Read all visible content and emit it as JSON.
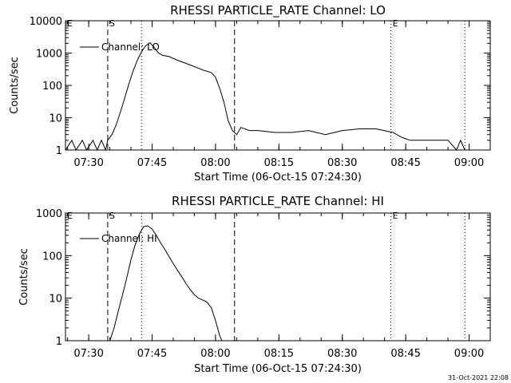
{
  "footer_date": "31-Oct-2021 22:08",
  "chart_data": [
    {
      "type": "line",
      "title": "RHESSI PARTICLE_RATE Channel: LO",
      "xlabel": "Start Time (06-Oct-15 07:24:30)",
      "ylabel": "Counts/sec",
      "y_scale": "log",
      "xlim": [
        "07:24:30",
        "09:05:00"
      ],
      "ylim": [
        1,
        10000
      ],
      "x_ticks": [
        "07:30",
        "07:45",
        "08:00",
        "08:15",
        "08:30",
        "08:45",
        "09:00"
      ],
      "y_ticks": [
        "1",
        "10",
        "100",
        "1000",
        "10000"
      ],
      "legend": "Channel: LO",
      "legend_position": "top-left",
      "markers": [
        {
          "label": "E",
          "time": "07:24:30",
          "style": "dotted"
        },
        {
          "label": "S",
          "time": "07:34:30",
          "style": "dashed"
        },
        {
          "label": "",
          "time": "07:42:30",
          "style": "dotted"
        },
        {
          "label": "",
          "time": "08:04:30",
          "style": "dashed"
        },
        {
          "label": "E",
          "time": "08:41:30",
          "style": "dotted"
        },
        {
          "label": "",
          "time": "08:59:00",
          "style": "dotted"
        }
      ],
      "series": [
        {
          "name": "Channel: LO",
          "points": [
            [
              "07:24:30",
              1
            ],
            [
              "07:26:00",
              2
            ],
            [
              "07:27:00",
              1
            ],
            [
              "07:28:30",
              2
            ],
            [
              "07:29:30",
              1
            ],
            [
              "07:31:00",
              2
            ],
            [
              "07:32:00",
              1
            ],
            [
              "07:33:00",
              2
            ],
            [
              "07:34:00",
              1
            ],
            [
              "07:34:30",
              2
            ],
            [
              "07:35:30",
              3
            ],
            [
              "07:36:30",
              6
            ],
            [
              "07:37:30",
              15
            ],
            [
              "07:38:30",
              40
            ],
            [
              "07:39:30",
              110
            ],
            [
              "07:40:30",
              280
            ],
            [
              "07:41:30",
              600
            ],
            [
              "07:42:30",
              1100
            ],
            [
              "07:43:30",
              1700
            ],
            [
              "07:44:30",
              2100
            ],
            [
              "07:45:30",
              1500
            ],
            [
              "07:46:30",
              1000
            ],
            [
              "07:47:30",
              850
            ],
            [
              "07:49:00",
              780
            ],
            [
              "07:51:00",
              600
            ],
            [
              "07:53:00",
              480
            ],
            [
              "07:55:00",
              380
            ],
            [
              "07:57:00",
              300
            ],
            [
              "07:59:00",
              250
            ],
            [
              "08:00:00",
              180
            ],
            [
              "08:01:00",
              80
            ],
            [
              "08:02:00",
              30
            ],
            [
              "08:03:00",
              8
            ],
            [
              "08:04:00",
              4
            ],
            [
              "08:05:00",
              3
            ],
            [
              "08:06:00",
              5
            ],
            [
              "08:08:00",
              4
            ],
            [
              "08:10:00",
              4
            ],
            [
              "08:14:00",
              3.5
            ],
            [
              "08:18:00",
              3.5
            ],
            [
              "08:22:00",
              4
            ],
            [
              "08:26:00",
              3
            ],
            [
              "08:30:00",
              4
            ],
            [
              "08:34:00",
              4.5
            ],
            [
              "08:38:00",
              4.5
            ],
            [
              "08:42:00",
              3.5
            ],
            [
              "08:44:00",
              2.5
            ],
            [
              "08:46:00",
              2
            ],
            [
              "08:50:00",
              2
            ],
            [
              "08:55:00",
              2
            ],
            [
              "08:57:00",
              1
            ],
            [
              "08:58:00",
              2
            ],
            [
              "08:59:00",
              1
            ]
          ]
        }
      ]
    },
    {
      "type": "line",
      "title": "RHESSI PARTICLE_RATE Channel: HI",
      "xlabel": "Start Time (06-Oct-15 07:24:30)",
      "ylabel": "Counts/sec",
      "y_scale": "log",
      "xlim": [
        "07:24:30",
        "09:05:00"
      ],
      "ylim": [
        1,
        1000
      ],
      "x_ticks": [
        "07:30",
        "07:45",
        "08:00",
        "08:15",
        "08:30",
        "08:45",
        "09:00"
      ],
      "y_ticks": [
        "1",
        "10",
        "100",
        "1000"
      ],
      "legend": "Channel: HI",
      "legend_position": "top-left",
      "markers": [
        {
          "label": "E",
          "time": "07:24:30",
          "style": "dotted"
        },
        {
          "label": "S",
          "time": "07:34:30",
          "style": "dashed"
        },
        {
          "label": "",
          "time": "07:42:30",
          "style": "dotted"
        },
        {
          "label": "",
          "time": "08:04:30",
          "style": "dashed"
        },
        {
          "label": "E",
          "time": "08:41:30",
          "style": "dotted"
        },
        {
          "label": "",
          "time": "08:59:00",
          "style": "dotted"
        }
      ],
      "series": [
        {
          "name": "Channel: HI",
          "points": [
            [
              "07:35:00",
              1
            ],
            [
              "07:36:00",
              2
            ],
            [
              "07:37:00",
              5
            ],
            [
              "07:38:00",
              12
            ],
            [
              "07:39:00",
              30
            ],
            [
              "07:40:00",
              80
            ],
            [
              "07:41:00",
              180
            ],
            [
              "07:42:00",
              320
            ],
            [
              "07:43:00",
              480
            ],
            [
              "07:44:00",
              500
            ],
            [
              "07:45:00",
              420
            ],
            [
              "07:46:00",
              300
            ],
            [
              "07:47:00",
              200
            ],
            [
              "07:48:00",
              140
            ],
            [
              "07:49:00",
              95
            ],
            [
              "07:50:00",
              65
            ],
            [
              "07:51:00",
              45
            ],
            [
              "07:52:00",
              32
            ],
            [
              "07:53:00",
              22
            ],
            [
              "07:54:00",
              16
            ],
            [
              "07:55:00",
              12
            ],
            [
              "07:56:00",
              10
            ],
            [
              "07:57:00",
              9
            ],
            [
              "07:58:00",
              8
            ],
            [
              "07:59:00",
              6
            ],
            [
              "08:00:00",
              3
            ],
            [
              "08:01:00",
              1.3
            ],
            [
              "08:01:30",
              1
            ]
          ]
        }
      ]
    }
  ]
}
